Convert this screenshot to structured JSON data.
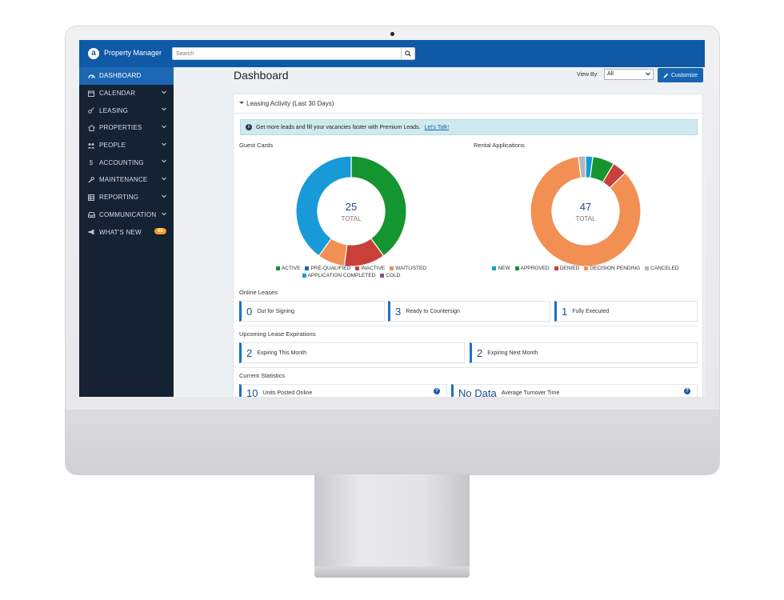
{
  "app": {
    "name": "Property Manager"
  },
  "search": {
    "placeholder": "Search"
  },
  "sidebar": {
    "items": [
      {
        "label": "DASHBOARD",
        "icon": "dashboard-icon",
        "active": true
      },
      {
        "label": "CALENDAR",
        "icon": "calendar-icon"
      },
      {
        "label": "LEASING",
        "icon": "key-icon"
      },
      {
        "label": "PROPERTIES",
        "icon": "home-icon"
      },
      {
        "label": "PEOPLE",
        "icon": "people-icon"
      },
      {
        "label": "ACCOUNTING",
        "icon": "dollar-icon"
      },
      {
        "label": "MAINTENANCE",
        "icon": "wrench-icon"
      },
      {
        "label": "REPORTING",
        "icon": "table-icon"
      },
      {
        "label": "COMMUNICATION",
        "icon": "inbox-icon"
      },
      {
        "label": "WHAT'S NEW",
        "icon": "megaphone-icon",
        "badge": "45"
      }
    ]
  },
  "header": {
    "title": "Dashboard",
    "view_by_label": "View By:",
    "view_by_value": "All",
    "customize_label": "Customize"
  },
  "leasing": {
    "title": "Leasing Activity (Last 30 Days)",
    "promo_text": "Get more leads and fill your vacancies faster with Premium Leads.",
    "promo_link": "Let's Talk!"
  },
  "chart_data": [
    {
      "type": "pie",
      "title": "Guest Cards",
      "center_value": "25",
      "center_label": "TOTAL",
      "series": [
        {
          "name": "ACTIVE",
          "value": 10,
          "color": "#14952f"
        },
        {
          "name": "PRE-QUALIFIED",
          "value": 0,
          "color": "#1b62b8"
        },
        {
          "name": "INACTIVE",
          "value": 3,
          "color": "#c9403a"
        },
        {
          "name": "WAITLISTED",
          "value": 2,
          "color": "#f28f52"
        },
        {
          "name": "APPLICATION COMPLETED",
          "value": 10,
          "color": "#189ad8"
        },
        {
          "name": "COLD",
          "value": 0,
          "color": "#8a4c9c"
        }
      ]
    },
    {
      "type": "pie",
      "title": "Rental Applications",
      "center_value": "47",
      "center_label": "TOTAL",
      "series": [
        {
          "name": "NEW",
          "value": 1,
          "color": "#189ad8"
        },
        {
          "name": "APPROVED",
          "value": 3,
          "color": "#14952f"
        },
        {
          "name": "DENIED",
          "value": 2,
          "color": "#c9403a"
        },
        {
          "name": "DECISION PENDING",
          "value": 40,
          "color": "#f28f52"
        },
        {
          "name": "CANCELED",
          "value": 1,
          "color": "#b3b6bb"
        }
      ]
    }
  ],
  "online_leases": {
    "title": "Online Leases",
    "cards": [
      {
        "value": "0",
        "label": "Out for Signing"
      },
      {
        "value": "3",
        "label": "Ready to Countersign"
      },
      {
        "value": "1",
        "label": "Fully Executed"
      }
    ]
  },
  "expirations": {
    "title": "Upcoming Lease Expirations",
    "cards": [
      {
        "value": "2",
        "label": "Expiring This Month"
      },
      {
        "value": "2",
        "label": "Expiring Next Month"
      }
    ]
  },
  "current_stats": {
    "title": "Current Statistics",
    "cards": [
      {
        "value": "10",
        "label": "Units Posted Online"
      },
      {
        "value": "No Data",
        "label": "Average Turnover Time"
      }
    ]
  }
}
